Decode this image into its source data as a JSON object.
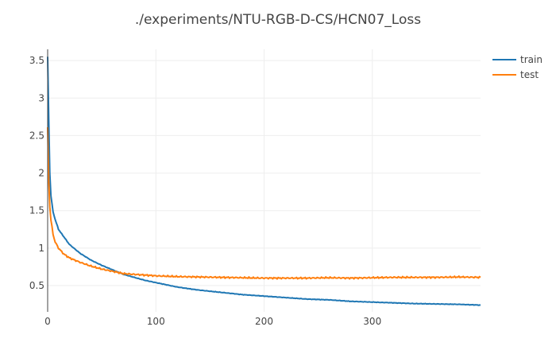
{
  "chart_data": {
    "type": "line",
    "title": "./experiments/NTU-RGB-D-CS/HCN07_Loss",
    "xlabel": "",
    "ylabel": "",
    "xlim": [
      0,
      400
    ],
    "ylim": [
      0.15,
      3.65
    ],
    "x_ticks": [
      0,
      100,
      200,
      300
    ],
    "y_ticks": [
      0.5,
      1,
      1.5,
      2,
      2.5,
      3,
      3.5
    ],
    "grid": true,
    "legend_position": "top-right",
    "series": [
      {
        "name": "train",
        "color": "#1f77b4",
        "x": [
          0,
          1,
          2,
          3,
          5,
          7,
          10,
          15,
          20,
          30,
          40,
          50,
          60,
          70,
          80,
          90,
          100,
          120,
          140,
          160,
          180,
          200,
          220,
          240,
          260,
          280,
          300,
          320,
          340,
          360,
          380,
          400
        ],
        "y": [
          3.55,
          2.7,
          2.0,
          1.7,
          1.48,
          1.38,
          1.25,
          1.15,
          1.05,
          0.93,
          0.84,
          0.77,
          0.71,
          0.65,
          0.61,
          0.57,
          0.54,
          0.48,
          0.44,
          0.41,
          0.38,
          0.36,
          0.34,
          0.32,
          0.31,
          0.29,
          0.28,
          0.27,
          0.26,
          0.255,
          0.25,
          0.24
        ]
      },
      {
        "name": "test",
        "color": "#ff7f0e",
        "x": [
          0,
          1,
          2,
          3,
          5,
          7,
          10,
          15,
          20,
          25,
          30,
          40,
          50,
          60,
          70,
          80,
          90,
          100,
          120,
          140,
          160,
          180,
          200,
          220,
          240,
          260,
          280,
          300,
          320,
          340,
          360,
          380,
          400
        ],
        "y": [
          2.6,
          1.9,
          1.55,
          1.38,
          1.18,
          1.08,
          1.0,
          0.92,
          0.87,
          0.84,
          0.81,
          0.76,
          0.72,
          0.69,
          0.66,
          0.65,
          0.64,
          0.63,
          0.62,
          0.615,
          0.61,
          0.605,
          0.6,
          0.6,
          0.6,
          0.605,
          0.6,
          0.605,
          0.61,
          0.61,
          0.61,
          0.615,
          0.61
        ]
      }
    ]
  }
}
